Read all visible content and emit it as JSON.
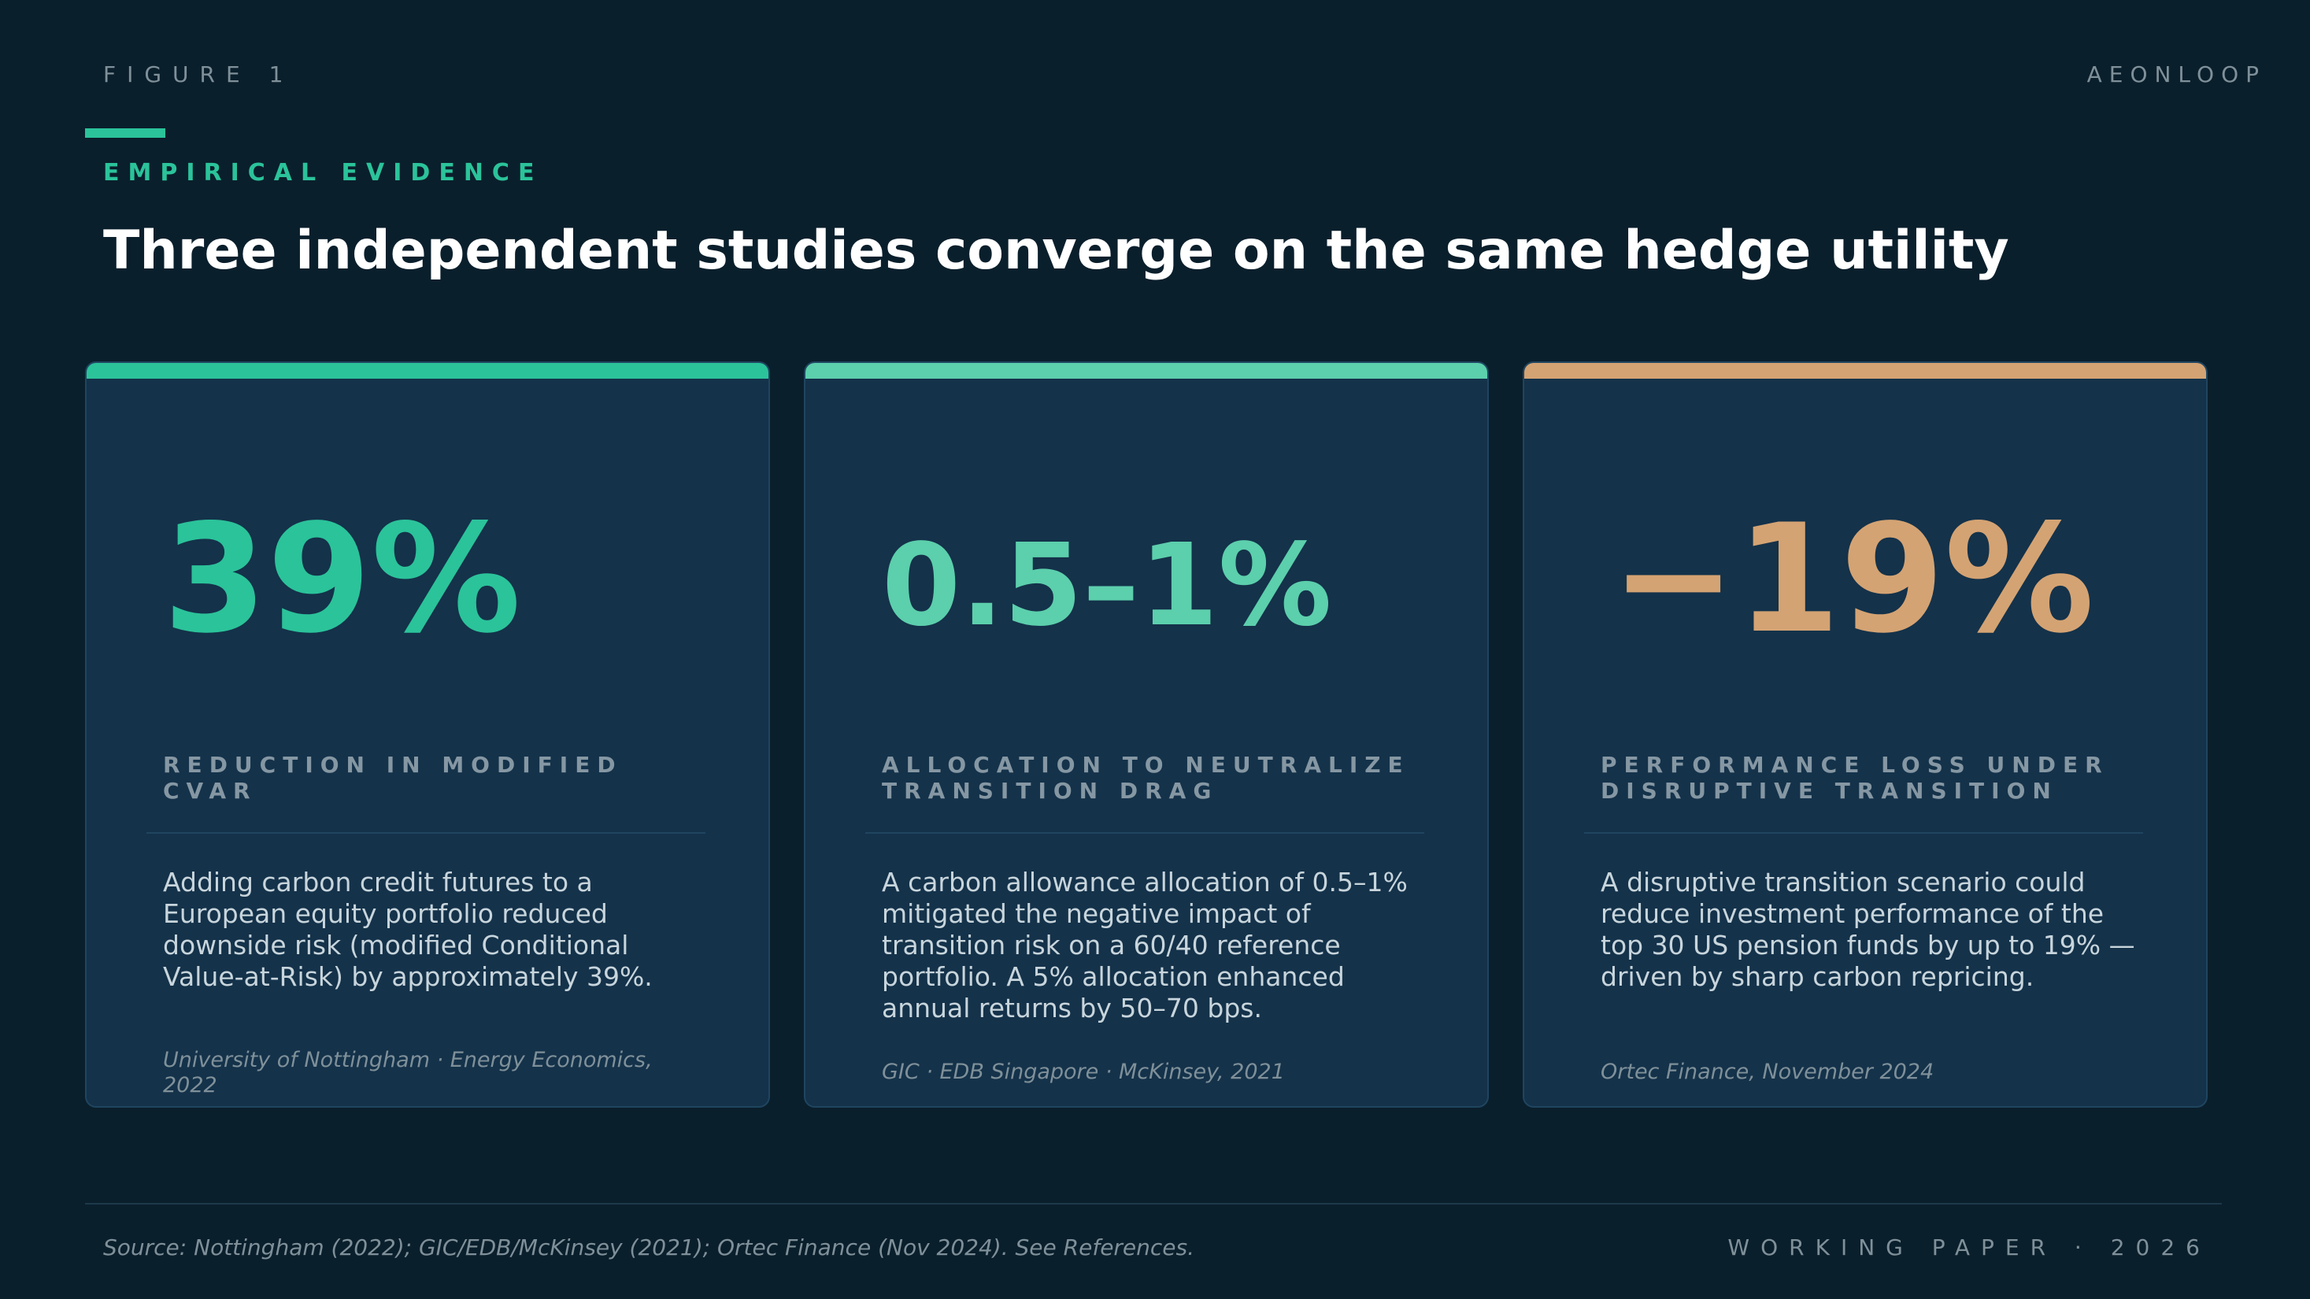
{
  "header": {
    "figure_label": "FIGURE 1",
    "brand": "AEONLOOP",
    "eyebrow": "EMPIRICAL EVIDENCE",
    "title": "Three independent studies converge on the same hedge utility"
  },
  "colors": {
    "background": "#0a1f2c",
    "card": "#14324a",
    "accent_green": "#2bc39a",
    "accent_mint": "#5ccfac",
    "accent_tan": "#d4a373"
  },
  "cards": [
    {
      "stat": "39%",
      "label": "REDUCTION IN MODIFIED CVAR",
      "body": "Adding carbon credit futures to a European equity portfolio reduced downside risk (modified Conditional Value-at-Risk) by approximately 39%.",
      "citation": "University of Nottingham · Energy Economics, 2022",
      "color": "#2bc39a"
    },
    {
      "stat": "0.5–1%",
      "label": "ALLOCATION TO NEUTRALIZE TRANSITION DRAG",
      "body": "A carbon allowance allocation of 0.5–1% mitigated the negative impact of transition risk on a 60/40 reference portfolio. A 5% allocation enhanced annual returns by 50–70 bps.",
      "citation": "GIC · EDB Singapore · McKinsey, 2021",
      "color": "#5ccfac"
    },
    {
      "stat": "−19%",
      "label": "PERFORMANCE LOSS UNDER DISRUPTIVE TRANSITION",
      "body": "A disruptive transition scenario could reduce investment performance of the top 30 US pension funds by up to 19% — driven by sharp carbon repricing.",
      "citation": "Ortec Finance, November 2024",
      "color": "#d4a373"
    }
  ],
  "footer": {
    "source": "Source: Nottingham (2022); GIC/EDB/McKinsey (2021); Ortec Finance (Nov 2024). See References.",
    "paper": "WORKING PAPER · 2026"
  }
}
